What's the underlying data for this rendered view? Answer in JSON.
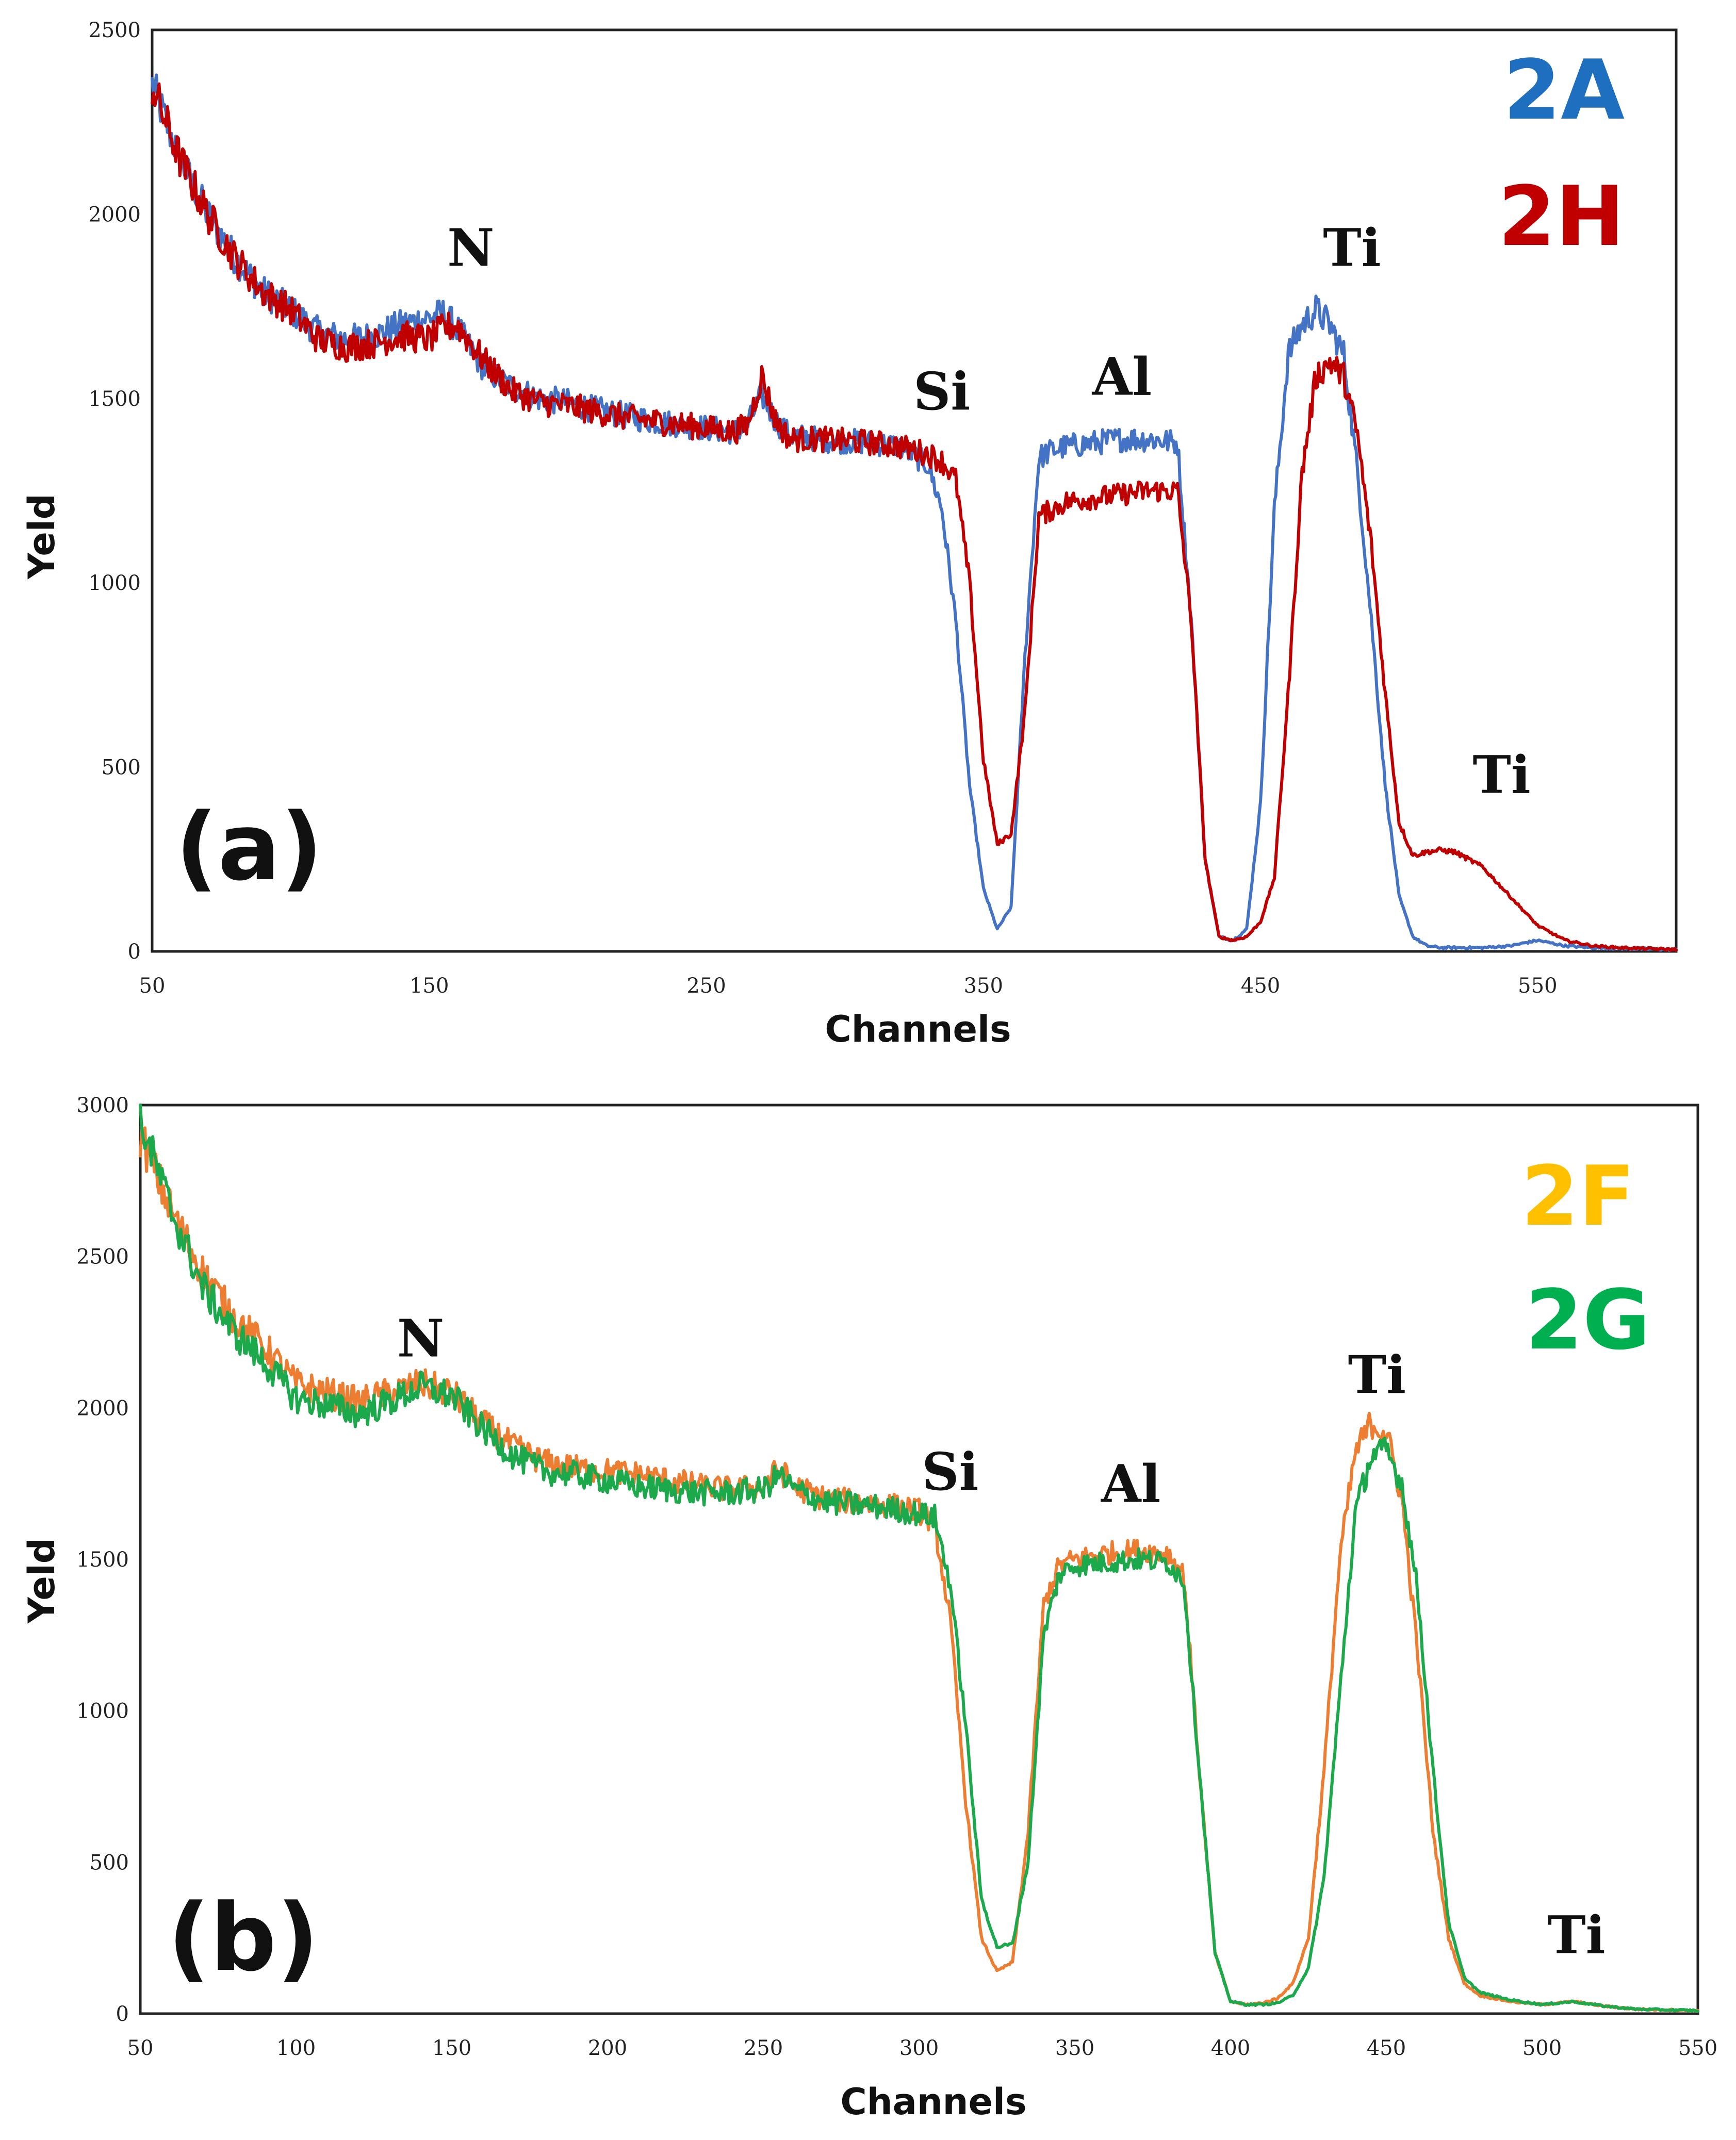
{
  "chart_data": [
    {
      "type": "line",
      "panel_label": "(a)",
      "xlabel": "Channels",
      "ylabel": "Yeld",
      "xlim": [
        50,
        600
      ],
      "ylim": [
        0,
        2500
      ],
      "xticks": [
        50,
        150,
        250,
        350,
        450,
        550
      ],
      "yticks": [
        0,
        500,
        1000,
        1500,
        2000,
        2500
      ],
      "legend_position": "top-right",
      "annotations": [
        {
          "text": "N",
          "x": 165,
          "y": 1860
        },
        {
          "text": "Si",
          "x": 335,
          "y": 1470
        },
        {
          "text": "Al",
          "x": 400,
          "y": 1510
        },
        {
          "text": "Ti",
          "x": 483,
          "y": 1860
        },
        {
          "text": "Ti",
          "x": 537,
          "y": 430
        }
      ],
      "series": [
        {
          "name": "2A",
          "color": "#4472C4",
          "legend_color": "#1F6FC0",
          "x": [
            50,
            60,
            70,
            80,
            90,
            100,
            110,
            120,
            130,
            140,
            150,
            155,
            160,
            170,
            180,
            190,
            200,
            210,
            220,
            230,
            240,
            250,
            260,
            265,
            270,
            275,
            280,
            290,
            300,
            310,
            320,
            330,
            335,
            340,
            345,
            350,
            355,
            360,
            365,
            370,
            375,
            380,
            390,
            400,
            410,
            420,
            425,
            430,
            435,
            440,
            445,
            450,
            455,
            460,
            465,
            470,
            475,
            480,
            485,
            490,
            495,
            500,
            505,
            510,
            515,
            520,
            530,
            540,
            550,
            560,
            570,
            580,
            600
          ],
          "values": [
            2350,
            2150,
            2000,
            1880,
            1790,
            1740,
            1680,
            1660,
            1670,
            1700,
            1720,
            1730,
            1690,
            1580,
            1530,
            1500,
            1490,
            1470,
            1455,
            1440,
            1430,
            1420,
            1410,
            1430,
            1510,
            1440,
            1400,
            1390,
            1385,
            1380,
            1370,
            1320,
            1200,
            900,
            450,
            170,
            60,
            120,
            800,
            1340,
            1360,
            1370,
            1380,
            1390,
            1390,
            1380,
            900,
            250,
            40,
            30,
            60,
            400,
            1200,
            1620,
            1700,
            1740,
            1700,
            1620,
            1300,
            900,
            450,
            150,
            40,
            15,
            10,
            10,
            10,
            15,
            30,
            15,
            10,
            8,
            5
          ]
        },
        {
          "name": "2H",
          "color": "#C00000",
          "legend_color": "#C00000",
          "x": [
            50,
            60,
            70,
            80,
            90,
            100,
            110,
            120,
            130,
            140,
            150,
            155,
            160,
            170,
            180,
            190,
            200,
            210,
            220,
            230,
            240,
            250,
            260,
            265,
            270,
            275,
            280,
            290,
            300,
            310,
            320,
            330,
            335,
            340,
            345,
            350,
            355,
            360,
            365,
            370,
            375,
            380,
            390,
            400,
            410,
            420,
            425,
            430,
            435,
            440,
            445,
            450,
            455,
            460,
            465,
            470,
            475,
            480,
            485,
            490,
            495,
            500,
            505,
            510,
            515,
            520,
            530,
            540,
            550,
            560,
            570,
            580,
            600
          ],
          "values": [
            2350,
            2150,
            2000,
            1880,
            1790,
            1740,
            1660,
            1640,
            1650,
            1670,
            1660,
            1690,
            1700,
            1600,
            1520,
            1490,
            1480,
            1465,
            1450,
            1440,
            1430,
            1420,
            1410,
            1430,
            1560,
            1440,
            1390,
            1390,
            1385,
            1380,
            1370,
            1350,
            1330,
            1280,
            1000,
            520,
            290,
            320,
            650,
            1180,
            1200,
            1220,
            1230,
            1240,
            1250,
            1250,
            900,
            250,
            40,
            30,
            40,
            80,
            200,
            700,
            1300,
            1560,
            1600,
            1560,
            1400,
            1100,
            700,
            350,
            260,
            270,
            275,
            270,
            230,
            150,
            70,
            30,
            15,
            10,
            5
          ]
        }
      ]
    },
    {
      "type": "line",
      "panel_label": "(b)",
      "xlabel": "Channels",
      "ylabel": "Yeld",
      "xlim": [
        50,
        550
      ],
      "ylim": [
        0,
        3000
      ],
      "xticks": [
        50,
        100,
        150,
        200,
        250,
        300,
        350,
        400,
        450,
        500,
        550
      ],
      "yticks": [
        0,
        500,
        1000,
        1500,
        2000,
        2500,
        3000
      ],
      "legend_position": "top-right",
      "annotations": [
        {
          "text": "N",
          "x": 140,
          "y": 2170
        },
        {
          "text": "Si",
          "x": 310,
          "y": 1730
        },
        {
          "text": "Al",
          "x": 368,
          "y": 1690
        },
        {
          "text": "Ti",
          "x": 447,
          "y": 2050
        },
        {
          "text": "Ti",
          "x": 511,
          "y": 200
        }
      ],
      "series": [
        {
          "name": "2F",
          "color": "#ED7D31",
          "legend_color": "#FFC000",
          "x": [
            50,
            60,
            70,
            80,
            90,
            100,
            110,
            120,
            130,
            140,
            150,
            160,
            170,
            180,
            190,
            200,
            210,
            220,
            230,
            240,
            250,
            255,
            260,
            270,
            280,
            290,
            300,
            305,
            310,
            315,
            320,
            325,
            330,
            335,
            340,
            345,
            350,
            360,
            370,
            380,
            385,
            390,
            395,
            400,
            405,
            410,
            415,
            420,
            425,
            430,
            435,
            440,
            445,
            450,
            455,
            460,
            465,
            470,
            475,
            480,
            490,
            500,
            510,
            520,
            530,
            550
          ],
          "values": [
            2900,
            2650,
            2450,
            2300,
            2200,
            2080,
            2050,
            2020,
            2050,
            2080,
            2050,
            1950,
            1870,
            1820,
            1800,
            1790,
            1780,
            1760,
            1740,
            1730,
            1740,
            1800,
            1740,
            1700,
            1690,
            1680,
            1660,
            1620,
            1300,
            700,
            250,
            140,
            170,
            600,
            1350,
            1480,
            1500,
            1520,
            1530,
            1520,
            1450,
            800,
            200,
            40,
            30,
            35,
            50,
            100,
            250,
            800,
            1500,
            1850,
            1950,
            1920,
            1700,
            1200,
            600,
            250,
            100,
            60,
            40,
            30,
            40,
            25,
            15,
            10
          ]
        },
        {
          "name": "2G",
          "color": "#1BA94C",
          "legend_color": "#00B050",
          "x": [
            50,
            60,
            70,
            80,
            90,
            100,
            110,
            120,
            130,
            140,
            150,
            160,
            170,
            180,
            190,
            200,
            210,
            220,
            230,
            240,
            250,
            255,
            260,
            270,
            280,
            290,
            300,
            305,
            310,
            315,
            320,
            325,
            330,
            335,
            340,
            345,
            350,
            360,
            370,
            380,
            385,
            390,
            395,
            400,
            405,
            410,
            415,
            420,
            425,
            430,
            435,
            440,
            445,
            450,
            455,
            460,
            465,
            470,
            475,
            480,
            490,
            500,
            510,
            520,
            530,
            550
          ],
          "values": [
            2950,
            2650,
            2400,
            2250,
            2150,
            2030,
            2010,
            1980,
            2020,
            2070,
            2040,
            1930,
            1840,
            1790,
            1780,
            1760,
            1740,
            1730,
            1720,
            1720,
            1730,
            1780,
            1730,
            1690,
            1680,
            1670,
            1650,
            1640,
            1420,
            950,
            380,
            220,
            230,
            500,
            1250,
            1450,
            1480,
            1490,
            1500,
            1490,
            1430,
            800,
            200,
            40,
            30,
            30,
            35,
            60,
            150,
            450,
            1050,
            1650,
            1840,
            1860,
            1750,
            1400,
            800,
            300,
            120,
            70,
            45,
            30,
            40,
            25,
            15,
            10
          ]
        }
      ]
    }
  ]
}
